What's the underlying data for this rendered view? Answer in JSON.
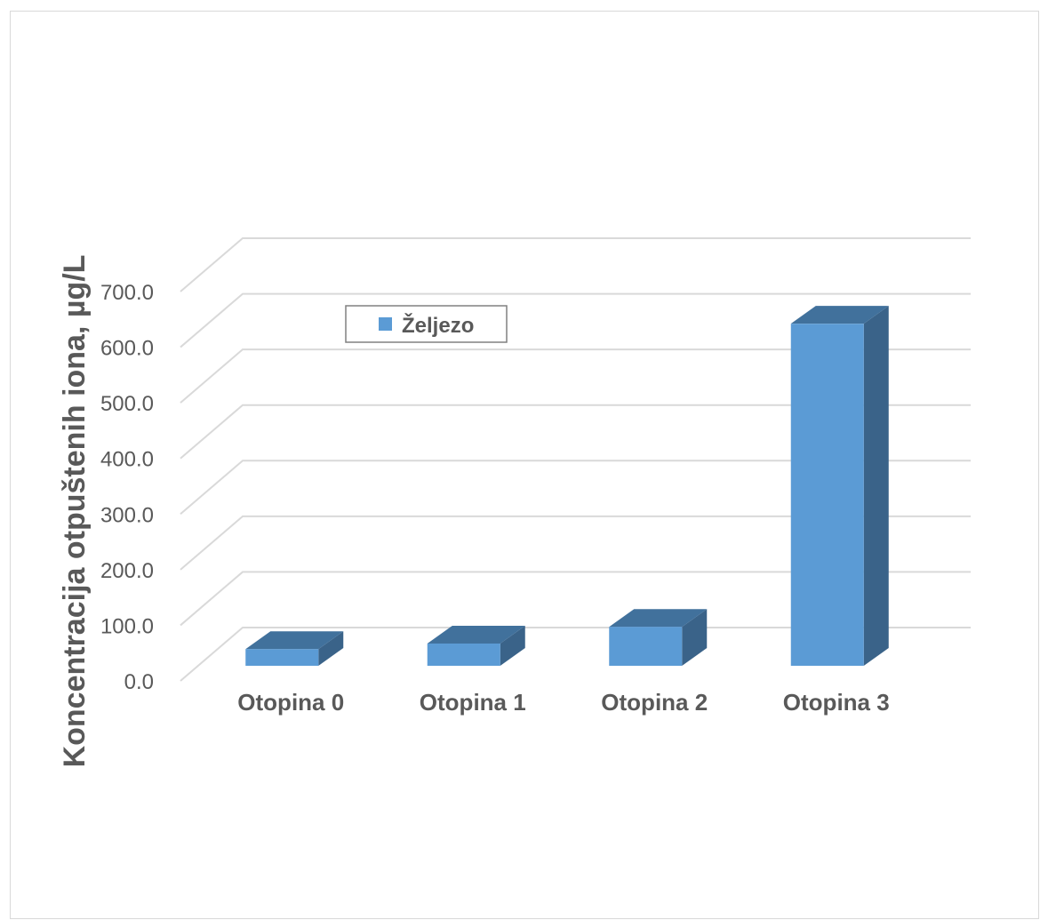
{
  "chart_data": {
    "type": "bar",
    "categories": [
      "Otopina 0",
      "Otopina 1",
      "Otopina 2",
      "Otopina 3"
    ],
    "series": [
      {
        "name": "Željezo",
        "values": [
          30,
          40,
          70,
          615
        ]
      }
    ],
    "title": "",
    "xlabel": "",
    "ylabel": "Koncentracija otpuštenih iona, µg/L",
    "ylim": [
      0,
      700
    ],
    "yticks": [
      "0.0",
      "100.0",
      "200.0",
      "300.0",
      "400.0",
      "500.0",
      "600.0",
      "700.0"
    ],
    "grid": true,
    "legend_position": "top-left inside",
    "three_d": true
  },
  "colors": {
    "bar_front": "#5b9bd5",
    "bar_top": "#41719c",
    "bar_side": "#3a6389",
    "grid": "#d9d9d9",
    "text": "#595959"
  }
}
